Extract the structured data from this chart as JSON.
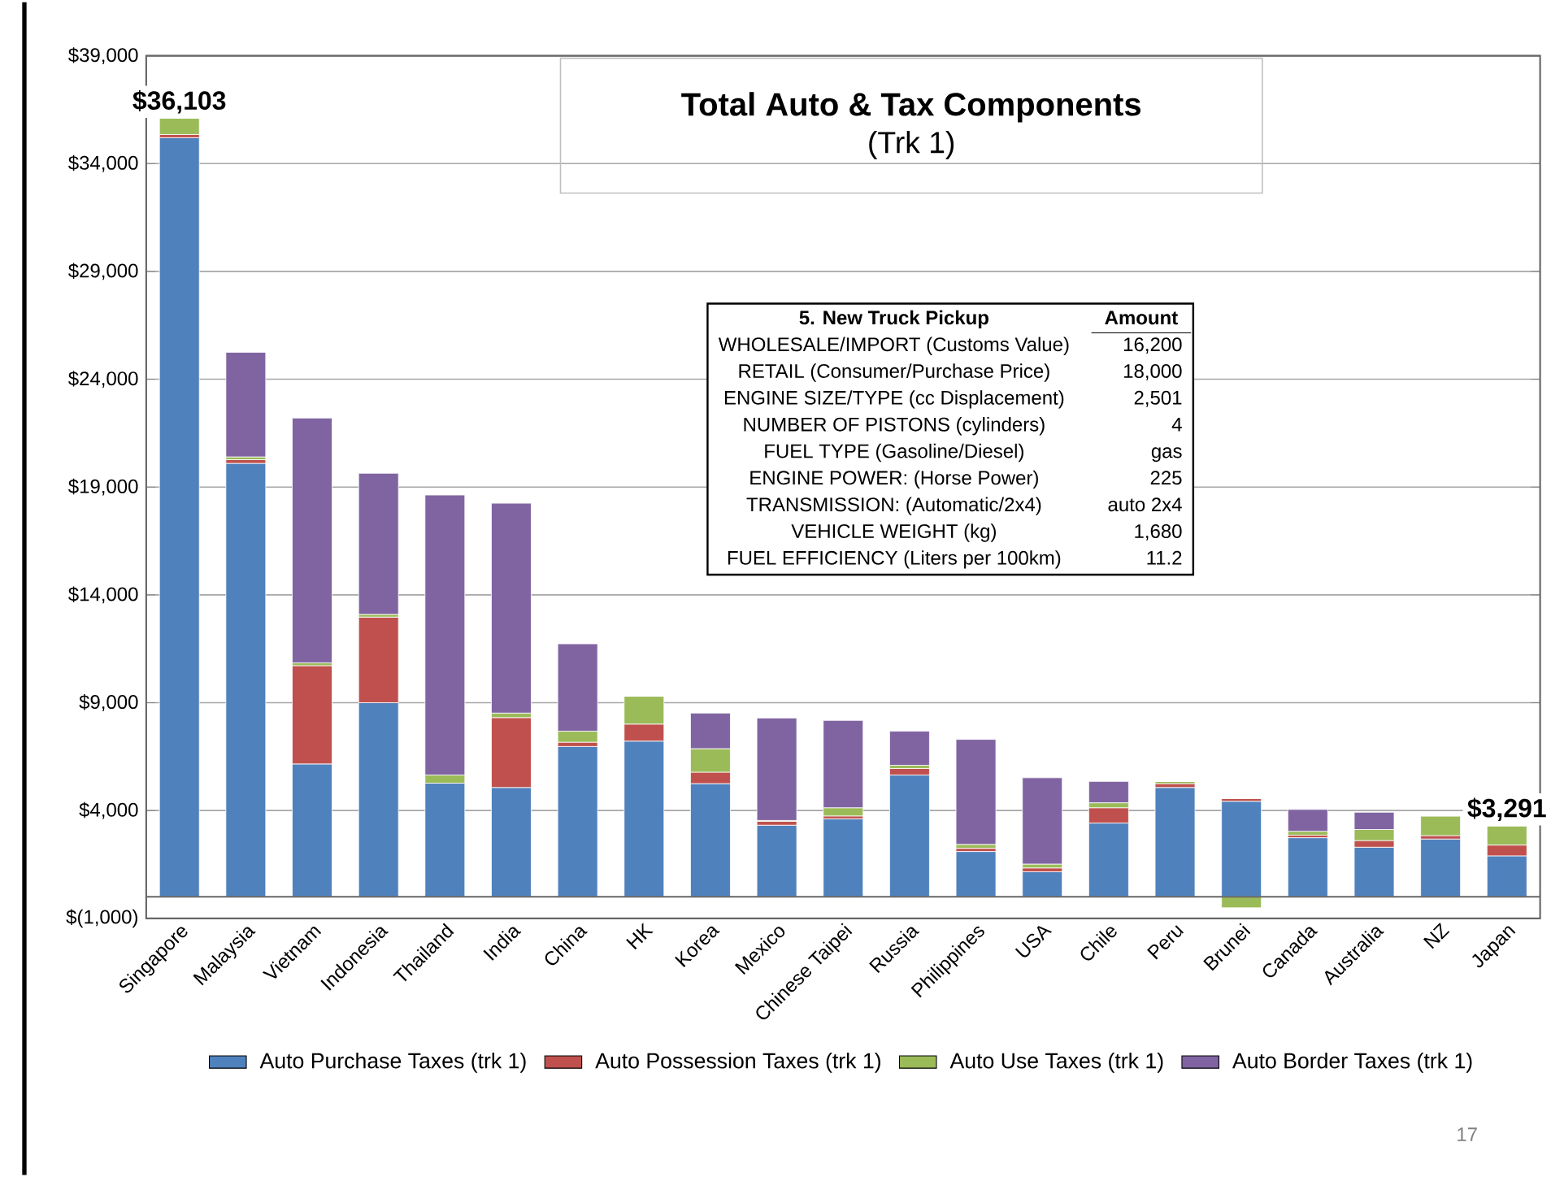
{
  "chart_data": {
    "type": "bar",
    "title": "Total Auto & Tax Components",
    "subtitle": "(Trk 1)",
    "categories": [
      "Singapore",
      "Malaysia",
      "Vietnam",
      "Indonesia",
      "Thailand",
      "India",
      "China",
      "HK",
      "Korea",
      "Mexico",
      "Chinese Taipei",
      "Russia",
      "Philippines",
      "USA",
      "Chile",
      "Peru",
      "Brunei",
      "Canada",
      "Australia",
      "NZ",
      "Japan"
    ],
    "stacked": true,
    "series": [
      {
        "name": "Auto Purchase Taxes (trk 1)",
        "color": "#4f81bd",
        "values": [
          35200,
          20100,
          6160,
          9000,
          5270,
          5070,
          6970,
          7220,
          5250,
          3320,
          3620,
          5650,
          2100,
          1160,
          3420,
          5070,
          4430,
          2740,
          2300,
          2680,
          1900
        ]
      },
      {
        "name": "Auto Possession Taxes  (trk 1)",
        "color": "#c0504d",
        "values": [
          150,
          170,
          4560,
          3970,
          null,
          3240,
          200,
          790,
          530,
          180,
          130,
          300,
          150,
          180,
          710,
          180,
          130,
          120,
          310,
          160,
          500
        ]
      },
      {
        "name": "Auto Use Taxes (trk 1)",
        "color": "#9bbb59",
        "values": [
          753,
          130,
          130,
          130,
          380,
          210,
          510,
          1290,
          1090,
          40,
          380,
          150,
          180,
          180,
          230,
          100,
          -510,
          180,
          510,
          910,
          891
        ]
      },
      {
        "name": "Auto Border Taxes  (trk 1)",
        "color": "#8064a2",
        "values": [
          0,
          4850,
          11350,
          6540,
          12980,
          9730,
          4050,
          0,
          1650,
          4750,
          4050,
          1580,
          4870,
          4000,
          990,
          0,
          0,
          1010,
          800,
          0,
          0
        ]
      }
    ],
    "ylim": [
      -1000,
      39000
    ],
    "yticks": [
      {
        "value": -1000,
        "label": "$(1,000)"
      },
      {
        "value": 4000,
        "label": "$4,000"
      },
      {
        "value": 9000,
        "label": "$9,000"
      },
      {
        "value": 14000,
        "label": "$14,000"
      },
      {
        "value": 19000,
        "label": "$19,000"
      },
      {
        "value": 24000,
        "label": "$24,000"
      },
      {
        "value": 29000,
        "label": "$29,000"
      },
      {
        "value": 34000,
        "label": "$34,000"
      },
      {
        "value": 39000,
        "label": "$39,000"
      }
    ],
    "grid": "y",
    "legend": "bottom",
    "annotations": [
      {
        "text": "$36,103",
        "x": "Singapore",
        "y": 36103
      },
      {
        "text": "$3,291",
        "x": "Japan",
        "y": 3291
      },
      "5. New Truck Pickup",
      "Amount",
      "WHOLESALE/IMPORT (Customs Value)",
      "16,200",
      "RETAIL (Consumer/Purchase Price)",
      "18,000",
      "ENGINE SIZE/TYPE (cc Displacement)",
      "2,501",
      "NUMBER OF PISTONS (cylinders)",
      "4",
      "FUEL TYPE (Gasoline/Diesel)",
      "gas",
      "ENGINE POWER: (Horse Power)",
      "225",
      "TRANSMISSION: (Automatic/2x4)",
      "auto 2x4",
      "VEHICLE WEIGHT (kg)",
      "1,680",
      "FUEL EFFICIENCY (Liters per 100km)",
      "11.2",
      "17"
    ]
  }
}
